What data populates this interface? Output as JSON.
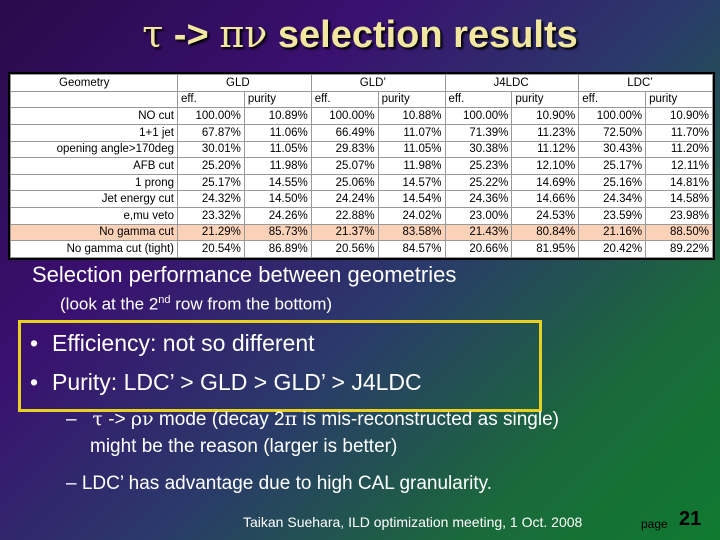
{
  "title": {
    "tau": "τ",
    "arrow": " -> ",
    "pi": "π",
    "nu": "ν",
    "rest": " selection results"
  },
  "table": {
    "header1": [
      "Geometry",
      "GLD",
      "GLD’",
      "J4LDC",
      "LDC’"
    ],
    "header2": [
      "eff.",
      "purity",
      "eff.",
      "purity",
      "eff.",
      "purity",
      "eff.",
      "purity"
    ],
    "rows": [
      {
        "label": "NO cut",
        "values": [
          "100.00%",
          "10.89%",
          "100.00%",
          "10.88%",
          "100.00%",
          "10.90%",
          "100.00%",
          "10.90%"
        ]
      },
      {
        "label": "1+1 jet",
        "values": [
          "67.87%",
          "11.06%",
          "66.49%",
          "11.07%",
          "71.39%",
          "11.23%",
          "72.50%",
          "11.70%"
        ]
      },
      {
        "label": "opening angle>170deg",
        "values": [
          "30.01%",
          "11.05%",
          "29.83%",
          "11.05%",
          "30.38%",
          "11.12%",
          "30.43%",
          "11.20%"
        ]
      },
      {
        "label": "AFB cut",
        "values": [
          "25.20%",
          "11.98%",
          "25.07%",
          "11.98%",
          "25.23%",
          "12.10%",
          "25.17%",
          "12.11%"
        ]
      },
      {
        "label": "1 prong",
        "values": [
          "25.17%",
          "14.55%",
          "25.06%",
          "14.57%",
          "25.22%",
          "14.69%",
          "25.16%",
          "14.81%"
        ]
      },
      {
        "label": "Jet energy cut",
        "values": [
          "24.32%",
          "14.50%",
          "24.24%",
          "14.54%",
          "24.36%",
          "14.66%",
          "24.34%",
          "14.58%"
        ]
      },
      {
        "label": "e,mu veto",
        "values": [
          "23.32%",
          "24.26%",
          "22.88%",
          "24.02%",
          "23.00%",
          "24.53%",
          "23.59%",
          "23.98%"
        ]
      },
      {
        "label": "No gamma cut",
        "values": [
          "21.29%",
          "85.73%",
          "21.37%",
          "83.58%",
          "21.43%",
          "80.84%",
          "21.16%",
          "88.50%"
        ],
        "highlight": true
      },
      {
        "label": "No gamma cut (tight)",
        "values": [
          "20.54%",
          "86.89%",
          "20.56%",
          "84.57%",
          "20.66%",
          "81.95%",
          "20.42%",
          "89.22%"
        ]
      }
    ]
  },
  "subtitle": "Selection performance between geometries",
  "note": {
    "pre": "(look at the 2",
    "sup": "nd",
    "post": " row from the bottom)"
  },
  "bullets": [
    "Efficiency: not so different",
    "Purity: LDC’ > GLD > GLD’ > J4LDC"
  ],
  "dash1": {
    "tau": "τ",
    "arrow": " -> ",
    "rho": "ρ",
    "nu": "ν",
    "mid": " mode (decay 2",
    "pi": "π",
    "end": " is mis-reconstructed as single)",
    "line2": "might be the reason (larger is better)"
  },
  "dash2": "LDC’ has advantage due to high CAL granularity.",
  "footer": "Taikan Suehara, ILD optimization meeting, 1 Oct. 2008",
  "page_label": "page",
  "page_number": "21"
}
